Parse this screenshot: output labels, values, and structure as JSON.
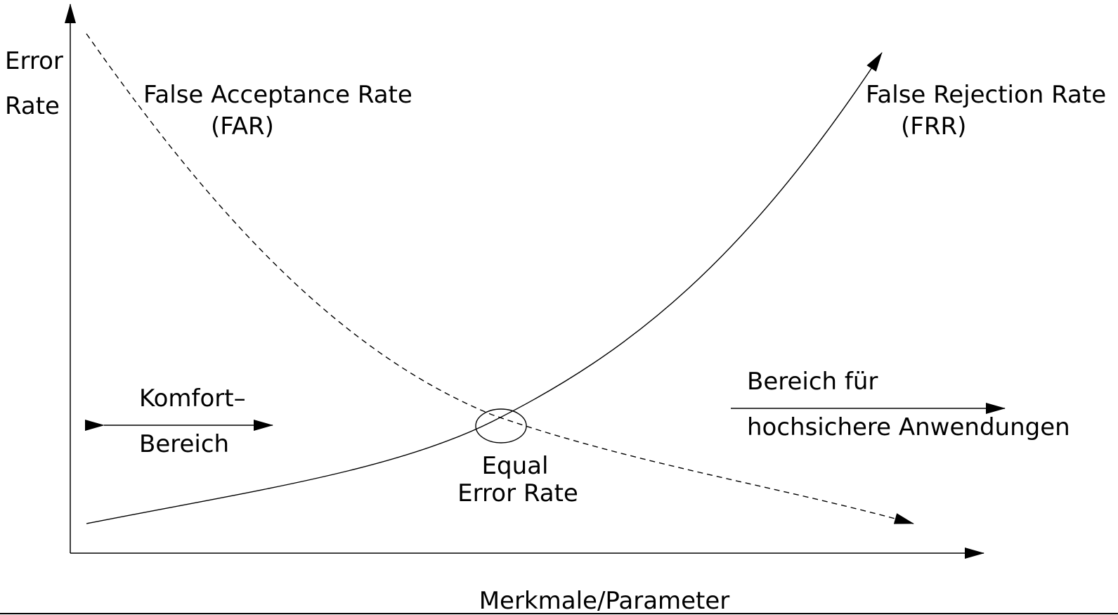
{
  "diagram": {
    "y_axis_label_line1": "Error",
    "y_axis_label_line2": "Rate",
    "x_axis_label": "Merkmale/Parameter",
    "far_label_line1": "False Acceptance Rate",
    "far_label_line2": "(FAR)",
    "frr_label_line1": "False Rejection Rate",
    "frr_label_line2": "(FRR)",
    "comfort_line1": "Komfort–",
    "comfort_line2": "Bereich",
    "eer_line1": "Equal",
    "eer_line2": "Error Rate",
    "secure_line1": "Bereich für",
    "secure_line2": "hochsichere Anwendungen",
    "colors": {
      "stroke": "#000000",
      "background": "#ffffff"
    }
  }
}
